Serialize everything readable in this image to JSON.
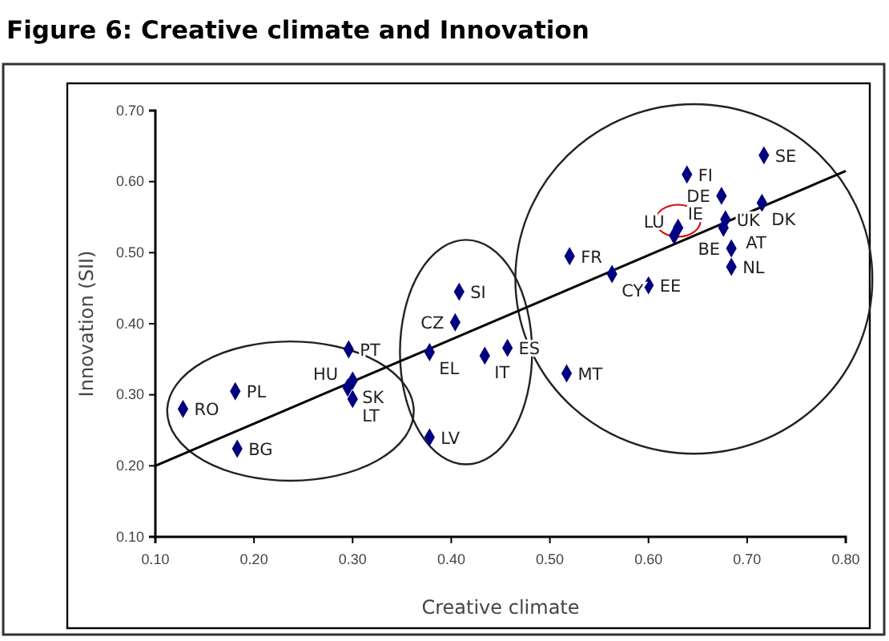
{
  "chart_data": {
    "type": "scatter",
    "title": "Figure 6: Creative climate and Innovation",
    "xlabel": "Creative climate",
    "ylabel": "Innovation (SII)",
    "xlim": [
      0.1,
      0.8
    ],
    "xticks": [
      {
        "value": 0.1,
        "label": "0.10"
      },
      {
        "value": 0.2,
        "label": "0.20"
      },
      {
        "value": 0.3,
        "label": "0.30"
      },
      {
        "value": 0.4,
        "label": "0.40"
      },
      {
        "value": 0.5,
        "label": "0.50"
      },
      {
        "value": 0.6,
        "label": "0.60"
      },
      {
        "value": 0.7,
        "label": "0.70"
      },
      {
        "value": 0.8,
        "label": "0.80"
      }
    ],
    "ylim": [
      0.1,
      0.7
    ],
    "yticks": [
      {
        "value": 0.1,
        "label": "0.10"
      },
      {
        "value": 0.2,
        "label": "0.20"
      },
      {
        "value": 0.3,
        "label": "0.30"
      },
      {
        "value": 0.4,
        "label": "0.40"
      },
      {
        "value": 0.5,
        "label": "0.50"
      },
      {
        "value": 0.6,
        "label": "0.60"
      },
      {
        "value": 0.7,
        "label": "0.70"
      }
    ],
    "marker": "diamond",
    "grid": false,
    "series": [
      {
        "type": "scatter",
        "color": "#000080",
        "x": [
          0.128,
          0.181,
          0.183,
          0.296,
          0.3,
          0.295,
          0.3,
          0.378,
          0.378,
          0.404,
          0.408,
          0.434,
          0.457,
          0.517,
          0.52,
          0.563,
          0.6,
          0.626,
          0.63,
          0.639,
          0.674,
          0.676,
          0.678,
          0.684,
          0.684,
          0.715,
          0.717
        ],
        "values": [
          0.28,
          0.305,
          0.224,
          0.364,
          0.32,
          0.31,
          0.294,
          0.36,
          0.24,
          0.402,
          0.445,
          0.355,
          0.366,
          0.33,
          0.495,
          0.47,
          0.454,
          0.524,
          0.535,
          0.61,
          0.58,
          0.535,
          0.547,
          0.506,
          0.48,
          0.57,
          0.637
        ]
      },
      {
        "type": "line",
        "marker": "none",
        "color": "#000000",
        "x": [
          0.1,
          0.8
        ],
        "values": [
          0.2,
          0.615
        ]
      }
    ],
    "annotations": [
      {
        "text": "RO",
        "x": 0.128,
        "y": 0.28
      },
      {
        "text": "PL",
        "x": 0.181,
        "y": 0.305
      },
      {
        "text": "BG",
        "x": 0.183,
        "y": 0.224
      },
      {
        "text": "PT",
        "x": 0.296,
        "y": 0.364
      },
      {
        "text": "SK",
        "x": 0.3,
        "y": 0.32
      },
      {
        "text": "HU",
        "x": 0.295,
        "y": 0.31
      },
      {
        "text": "LT",
        "x": 0.3,
        "y": 0.294
      },
      {
        "text": "EL",
        "x": 0.378,
        "y": 0.36
      },
      {
        "text": "LV",
        "x": 0.378,
        "y": 0.24
      },
      {
        "text": "CZ",
        "x": 0.404,
        "y": 0.402
      },
      {
        "text": "SI",
        "x": 0.408,
        "y": 0.445
      },
      {
        "text": "IT",
        "x": 0.434,
        "y": 0.355
      },
      {
        "text": "ES",
        "x": 0.457,
        "y": 0.366
      },
      {
        "text": "MT",
        "x": 0.517,
        "y": 0.33
      },
      {
        "text": "FR",
        "x": 0.52,
        "y": 0.495
      },
      {
        "text": "CY",
        "x": 0.563,
        "y": 0.47
      },
      {
        "text": "EE",
        "x": 0.6,
        "y": 0.454
      },
      {
        "text": "LU",
        "x": 0.626,
        "y": 0.524
      },
      {
        "text": "IE",
        "x": 0.63,
        "y": 0.535
      },
      {
        "text": "FI",
        "x": 0.639,
        "y": 0.61
      },
      {
        "text": "DE",
        "x": 0.674,
        "y": 0.58
      },
      {
        "text": "AT",
        "x": 0.676,
        "y": 0.535
      },
      {
        "text": "UK",
        "x": 0.678,
        "y": 0.547
      },
      {
        "text": "BE",
        "x": 0.684,
        "y": 0.506
      },
      {
        "text": "NL",
        "x": 0.684,
        "y": 0.48
      },
      {
        "text": "DK",
        "x": 0.715,
        "y": 0.57
      },
      {
        "text": "SE",
        "x": 0.717,
        "y": 0.637
      }
    ]
  }
}
